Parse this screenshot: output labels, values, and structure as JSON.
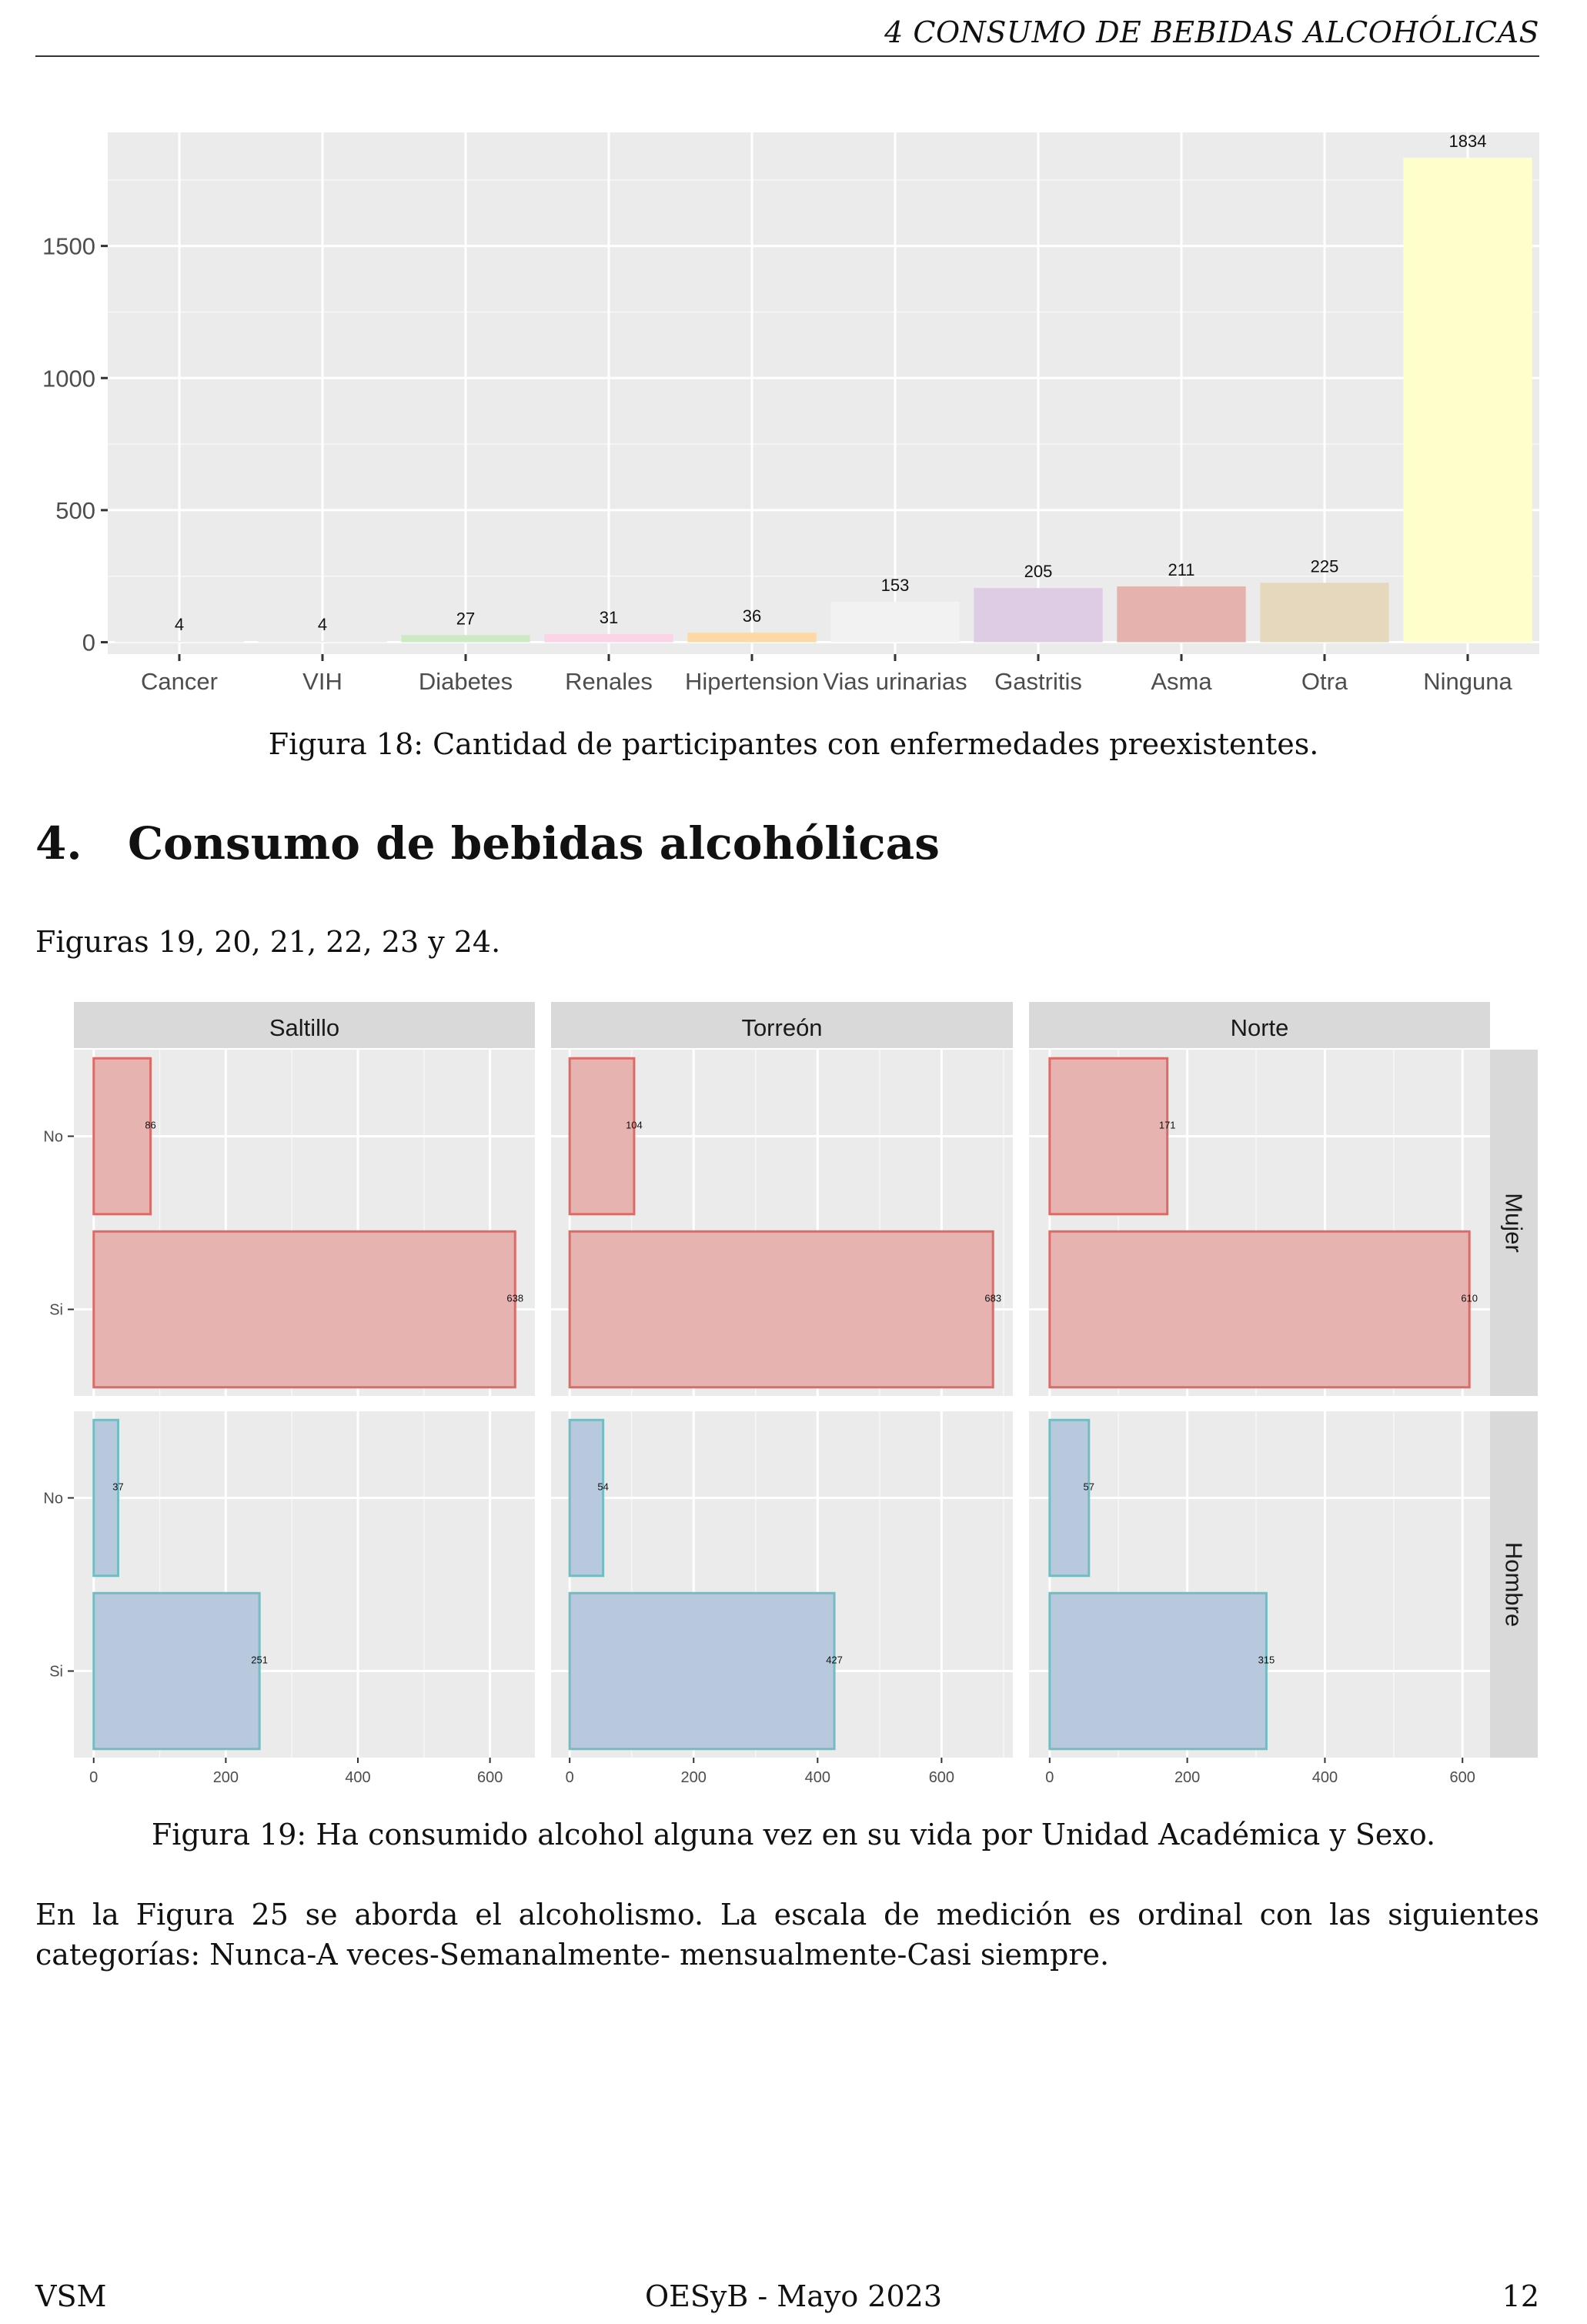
{
  "header": {
    "running_title": "4   CONSUMO DE BEBIDAS ALCOHÓLICAS"
  },
  "figure18": {
    "caption": "Figura 18: Cantidad de participantes con enfermedades preexistentes.",
    "chart_data": {
      "type": "bar",
      "title": "",
      "xlabel": "",
      "ylabel": "",
      "categories": [
        "Cancer",
        "VIH",
        "Diabetes",
        "Renales",
        "Hipertension",
        "Vias urinarias",
        "Gastritis",
        "Asma",
        "Otra",
        "Ninguna"
      ],
      "values": [
        4,
        4,
        27,
        31,
        36,
        153,
        205,
        211,
        225,
        1834
      ],
      "colors": [
        "#E8E8E8",
        "#E8E8E8",
        "#CCEBC5",
        "#FBD4E8",
        "#FED9A6",
        "#F2F2F2",
        "#DECBE4",
        "#E6B2AD",
        "#E5D8BD",
        "#FFFFCC"
      ],
      "y_ticks": [
        0,
        500,
        1000,
        1500
      ],
      "ylim": [
        -45,
        1930
      ],
      "grid": true
    }
  },
  "section": {
    "number": "4.",
    "title": "Consumo de bebidas alcohólicas"
  },
  "intro_text": "Figuras 19, 20, 21, 22, 23 y 24.",
  "figure19": {
    "caption": "Figura 19: Ha consumido alcohol alguna vez en su vida por Unidad Académica y Sexo.",
    "chart_data": {
      "type": "bar",
      "orientation": "horizontal",
      "facet_columns": [
        "Saltillo",
        "Torreón",
        "Norte"
      ],
      "facet_rows": [
        "Mujer",
        "Hombre"
      ],
      "categories": [
        "No",
        "Si"
      ],
      "x_ticks": [
        0,
        200,
        400,
        600
      ],
      "xlim_per_column": [
        [
          -30,
          668
        ],
        [
          -30,
          715
        ],
        [
          -30,
          640
        ]
      ],
      "panels": [
        {
          "column": "Saltillo",
          "row": "Mujer",
          "values": {
            "No": 86,
            "Si": 638
          }
        },
        {
          "column": "Torreón",
          "row": "Mujer",
          "values": {
            "No": 104,
            "Si": 683
          }
        },
        {
          "column": "Norte",
          "row": "Mujer",
          "values": {
            "No": 171,
            "Si": 610
          }
        },
        {
          "column": "Saltillo",
          "row": "Hombre",
          "values": {
            "No": 37,
            "Si": 251
          }
        },
        {
          "column": "Torreón",
          "row": "Hombre",
          "values": {
            "No": 54,
            "Si": 427
          }
        },
        {
          "column": "Norte",
          "row": "Hombre",
          "values": {
            "No": 57,
            "Si": 315
          }
        }
      ],
      "colors": {
        "Mujer": {
          "fill": "#E6B3B1",
          "stroke": "#DB6B66"
        },
        "Hombre": {
          "fill": "#B8C9DE",
          "stroke": "#72BCC3"
        }
      },
      "grid": true
    }
  },
  "body_paragraph": "En la Figura 25 se aborda el alcoholismo. La escala de medición es ordinal con las siguientes categorías: Nunca-A veces-Semanalmente- mensualmente-Casi siempre.",
  "footer": {
    "left": "VSM",
    "center": "OESyB - Mayo 2023",
    "page_number": "12"
  }
}
